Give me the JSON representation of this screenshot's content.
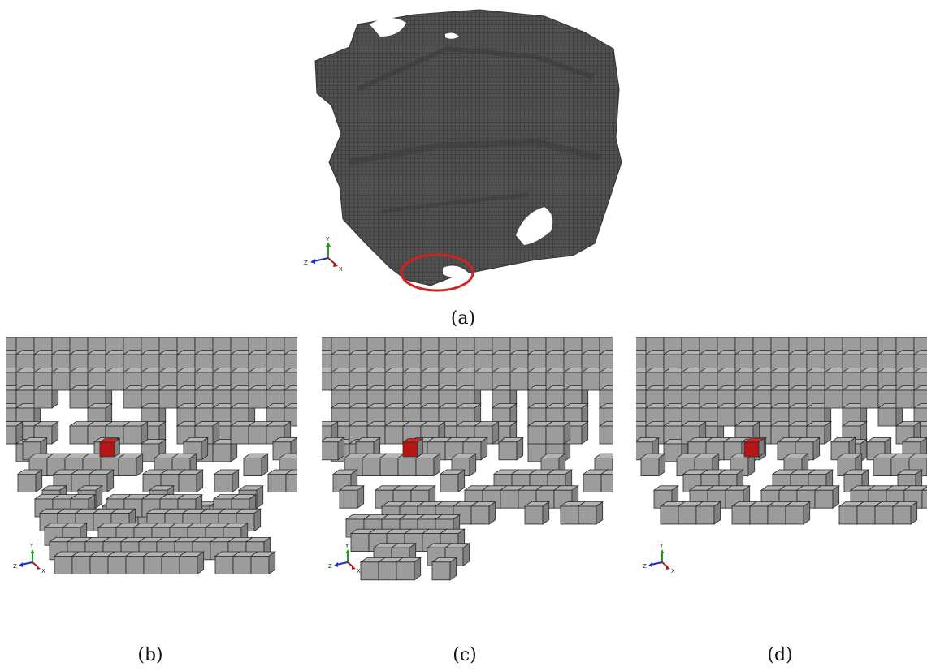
{
  "captions": {
    "a": "(a)",
    "b": "(b)",
    "c": "(c)",
    "d": "(d)"
  },
  "triad": {
    "y": "Y",
    "z": "Z",
    "x": "X"
  },
  "colors": {
    "mesh_dark": "#4a4a4a",
    "voxel_face": "#9c9c9c",
    "voxel_edge": "#2a2a2a",
    "highlight_voxel": "#e02020",
    "highlight_circle": "#d42020",
    "axis_y": "#19a019",
    "axis_z": "#1a2bd0",
    "axis_x": "#b01a1a"
  },
  "icons": {
    "triad": "coordinate-triad-icon",
    "voxel_mesh": "voxel-mesh-figure",
    "highlight": "red-circle-marker"
  }
}
